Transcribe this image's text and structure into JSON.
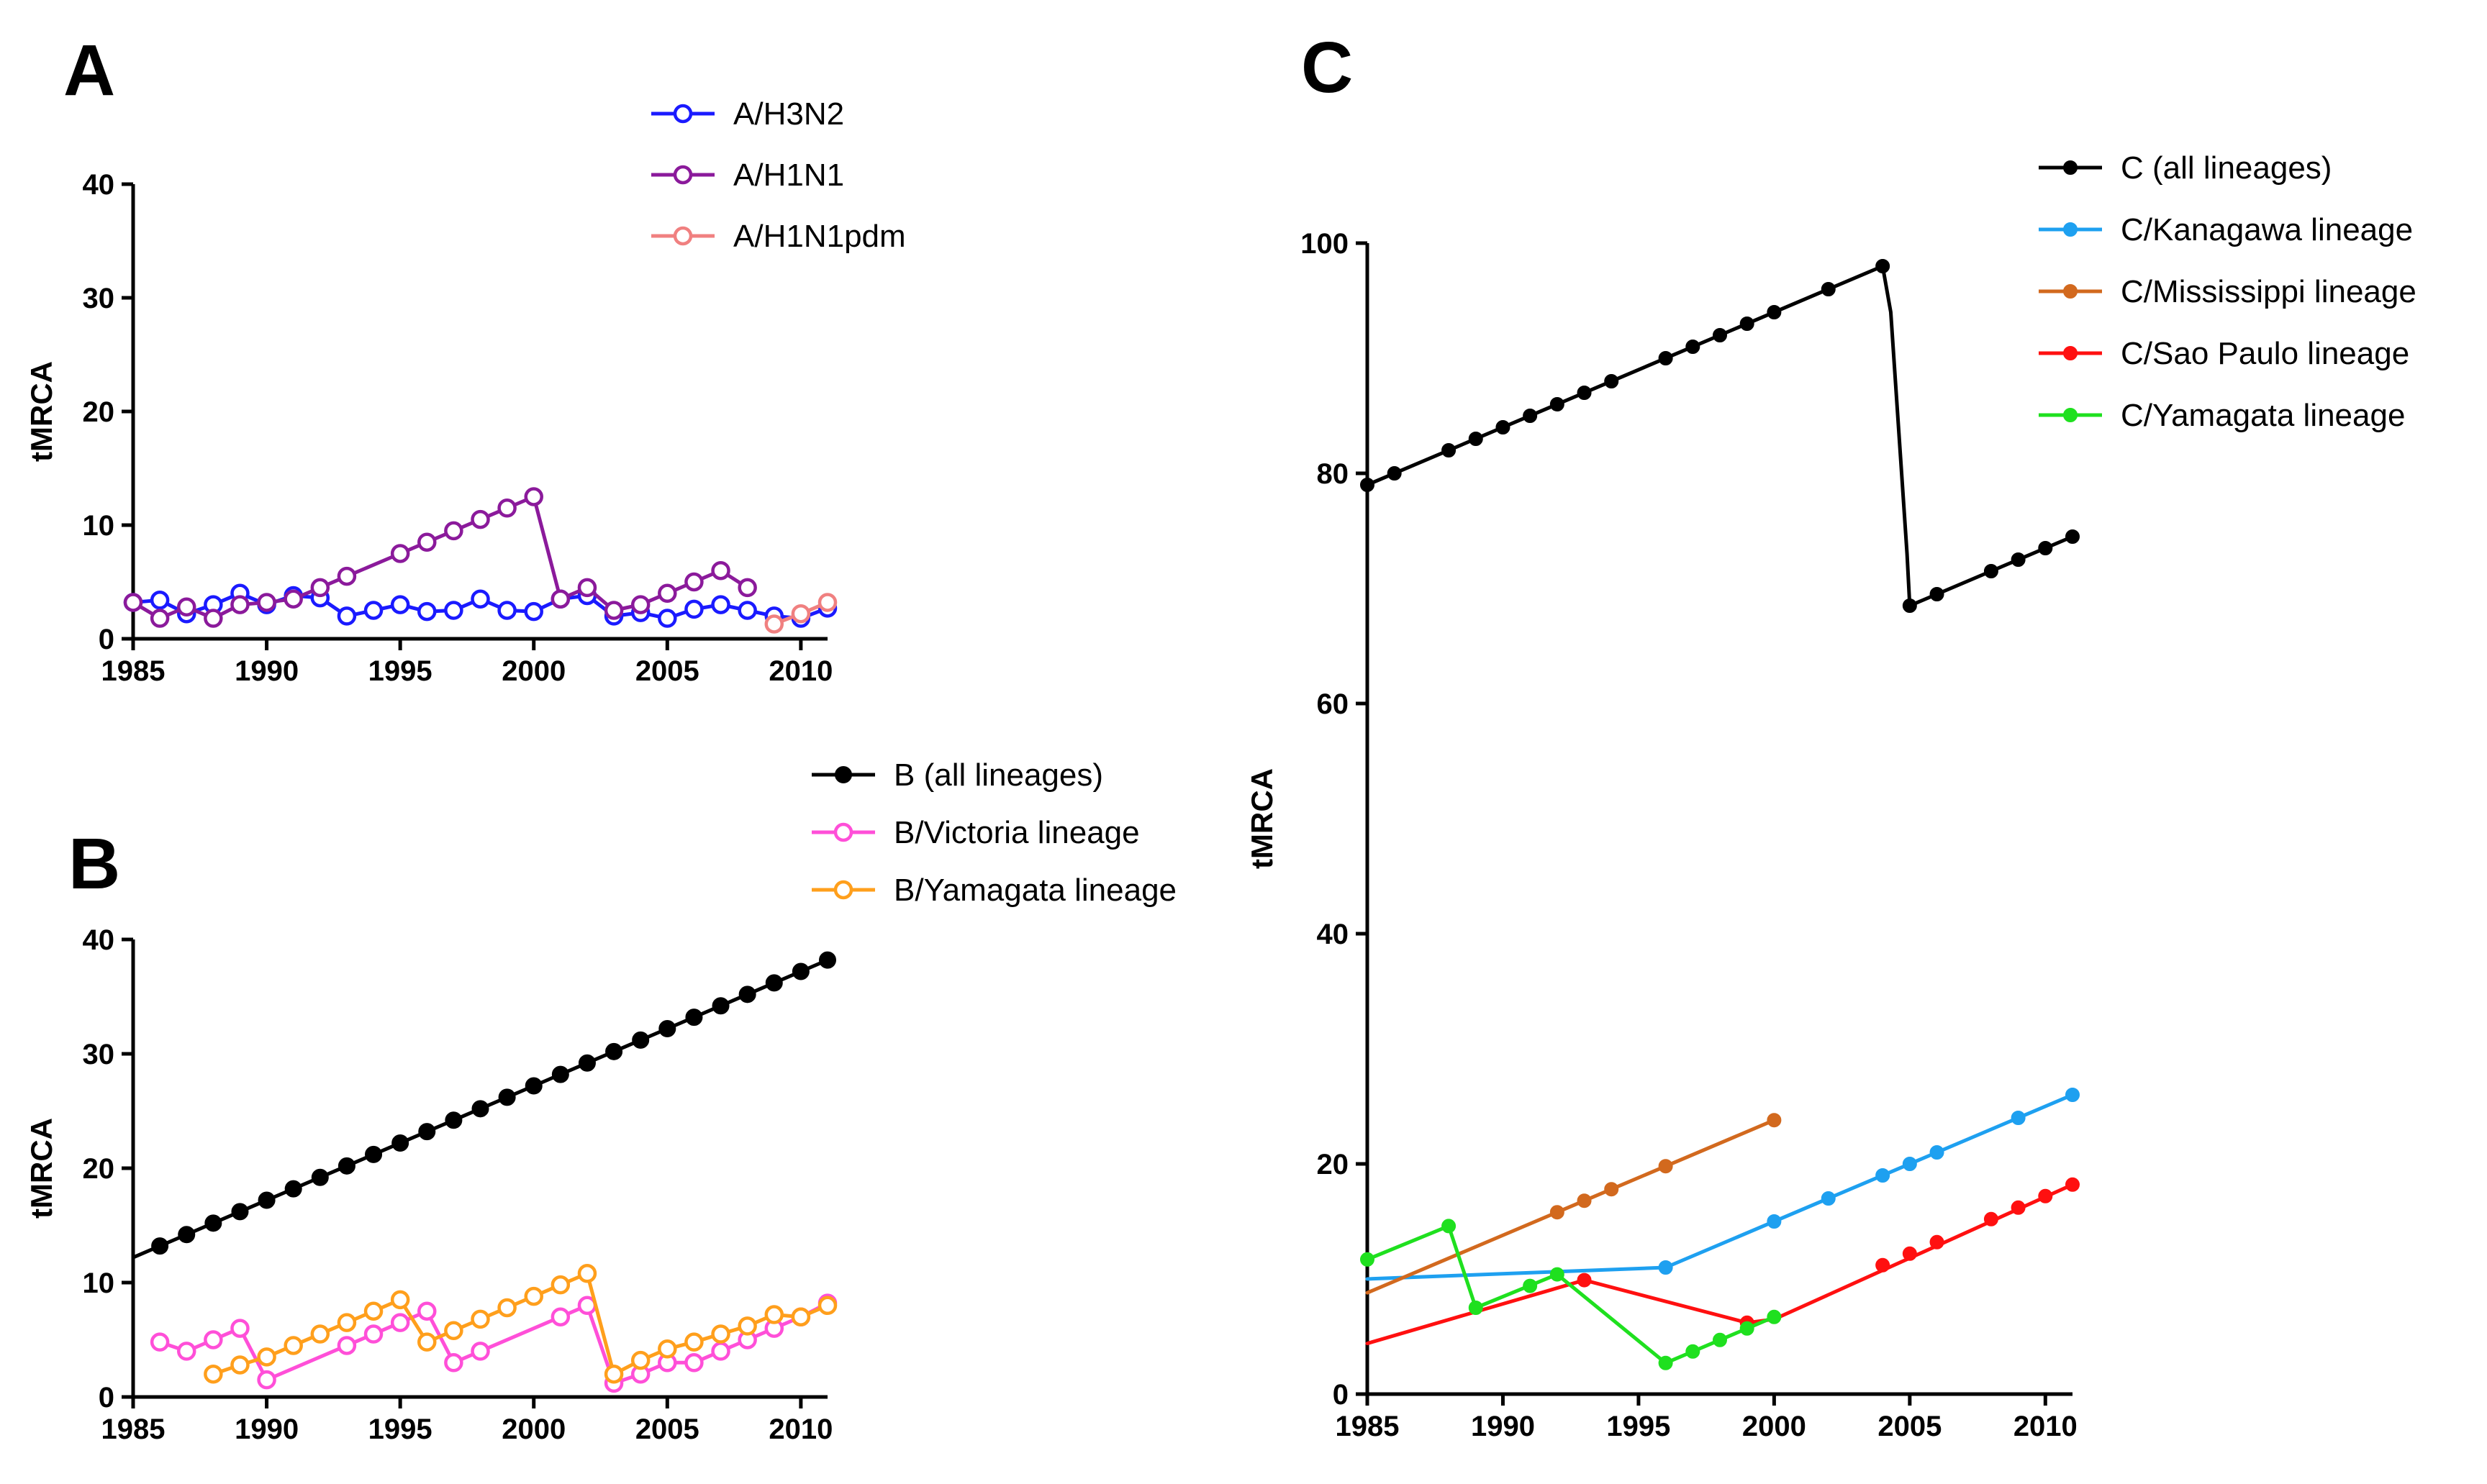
{
  "chart_data": [
    {
      "id": "A",
      "type": "line",
      "panel_label": "A",
      "xlabel": "",
      "ylabel": "tMRCA",
      "xlim": [
        1985,
        2011
      ],
      "ylim": [
        0,
        40
      ],
      "xticks": [
        1985,
        1990,
        1995,
        2000,
        2005,
        2010
      ],
      "yticks": [
        0,
        10,
        20,
        30,
        40
      ],
      "legend_position": "top-right",
      "series": [
        {
          "name": "A/H3N2",
          "color": "#1a1aff",
          "marker": "open",
          "x": [
            1985,
            1986,
            1987,
            1988,
            1989,
            1990,
            1991,
            1992,
            1993,
            1994,
            1995,
            1996,
            1997,
            1998,
            1999,
            2000,
            2001,
            2002,
            2003,
            2004,
            2005,
            2006,
            2007,
            2008,
            2009,
            2010,
            2011
          ],
          "y": [
            3.2,
            3.4,
            2.2,
            3.0,
            4.0,
            3.0,
            3.8,
            3.6,
            2.0,
            2.5,
            3.0,
            2.4,
            2.5,
            3.5,
            2.5,
            2.4,
            3.5,
            3.8,
            2.0,
            2.3,
            1.8,
            2.6,
            3.0,
            2.5,
            2.0,
            1.8,
            2.7
          ]
        },
        {
          "name": "A/H1N1",
          "color": "#8b1a9b",
          "marker": "open",
          "x": [
            1985,
            1986,
            1987,
            1988,
            1989,
            1990,
            1991,
            1992,
            1993,
            1995,
            1996,
            1997,
            1998,
            1999,
            2000,
            2001,
            2002,
            2003,
            2004,
            2005,
            2006,
            2007,
            2008
          ],
          "y": [
            3.2,
            1.8,
            2.8,
            1.8,
            3.0,
            3.2,
            3.5,
            4.5,
            5.5,
            7.5,
            8.5,
            9.5,
            10.5,
            11.5,
            12.5,
            3.5,
            4.5,
            2.5,
            3.0,
            4.0,
            5.0,
            6.0,
            4.5
          ]
        },
        {
          "name": "A/H1N1pdm",
          "color": "#f08080",
          "marker": "open",
          "x": [
            2009,
            2010,
            2011
          ],
          "y": [
            1.3,
            2.2,
            3.2
          ]
        }
      ]
    },
    {
      "id": "B",
      "type": "line",
      "panel_label": "B",
      "xlabel": "",
      "ylabel": "tMRCA",
      "xlim": [
        1985,
        2011
      ],
      "ylim": [
        0,
        40
      ],
      "xticks": [
        1985,
        1990,
        1995,
        2000,
        2005,
        2010
      ],
      "yticks": [
        0,
        10,
        20,
        30,
        40
      ],
      "legend_position": "top-right",
      "series": [
        {
          "name": "B (all lineages)",
          "color": "#000000",
          "marker": "filled",
          "line_x": [
            1985,
            2011
          ],
          "line_y": [
            12.2,
            38.2
          ],
          "x": [
            1986,
            1987,
            1988,
            1989,
            1990,
            1991,
            1992,
            1993,
            1994,
            1995,
            1996,
            1997,
            1998,
            1999,
            2000,
            2001,
            2002,
            2003,
            2004,
            2005,
            2006,
            2007,
            2008,
            2009,
            2010,
            2011
          ],
          "y": [
            13.2,
            14.2,
            15.2,
            16.2,
            17.2,
            18.2,
            19.2,
            20.2,
            21.2,
            22.2,
            23.2,
            24.2,
            25.2,
            26.2,
            27.2,
            28.2,
            29.2,
            30.2,
            31.2,
            32.2,
            33.2,
            34.2,
            35.2,
            36.2,
            37.2,
            38.2
          ]
        },
        {
          "name": "B/Victoria lineage",
          "color": "#ff4fd8",
          "marker": "open",
          "x": [
            1986,
            1987,
            1988,
            1989,
            1990,
            1993,
            1994,
            1995,
            1996,
            1997,
            1998,
            2001,
            2002,
            2003,
            2004,
            2005,
            2006,
            2007,
            2008,
            2009,
            2010,
            2011
          ],
          "y": [
            4.8,
            4.0,
            5.0,
            6.0,
            1.5,
            4.5,
            5.5,
            6.5,
            7.5,
            3.0,
            4.0,
            7.0,
            8.0,
            1.2,
            2.0,
            3.0,
            3.0,
            4.0,
            5.0,
            6.0,
            7.0,
            8.2
          ]
        },
        {
          "name": "B/Yamagata lineage",
          "color": "#ff9f1c",
          "marker": "open",
          "x": [
            1988,
            1989,
            1990,
            1991,
            1992,
            1993,
            1994,
            1995,
            1996,
            1997,
            1998,
            1999,
            2000,
            2001,
            2002,
            2003,
            2004,
            2005,
            2006,
            2007,
            2008,
            2009,
            2010,
            2011
          ],
          "y": [
            2.0,
            2.8,
            3.5,
            4.5,
            5.5,
            6.5,
            7.5,
            8.5,
            4.8,
            5.8,
            6.8,
            7.8,
            8.8,
            9.8,
            10.8,
            2.0,
            3.2,
            4.2,
            4.8,
            5.5,
            6.2,
            7.2,
            7.0,
            8.0
          ]
        }
      ]
    },
    {
      "id": "C",
      "type": "line",
      "panel_label": "C",
      "xlabel": "",
      "ylabel": "tMRCA",
      "xlim": [
        1985,
        2011
      ],
      "ylim": [
        0,
        100
      ],
      "xticks": [
        1985,
        1990,
        1995,
        2000,
        2005,
        2010
      ],
      "yticks": [
        0,
        20,
        40,
        60,
        80,
        100
      ],
      "legend_position": "top-right",
      "series": [
        {
          "name": "C (all lineages)",
          "color": "#000000",
          "marker": "filled",
          "line_x": [
            1985,
            2004,
            2004.3,
            2004.9,
            2005,
            2011
          ],
          "line_y": [
            79,
            98,
            94,
            73,
            68.5,
            74.5
          ],
          "x": [
            1985,
            1986,
            1988,
            1989,
            1990,
            1991,
            1992,
            1993,
            1994,
            1996,
            1997,
            1998,
            1999,
            2000,
            2002,
            2004,
            2005,
            2006,
            2008,
            2009,
            2010,
            2011
          ],
          "y": [
            79,
            80,
            82,
            83,
            84,
            85,
            86,
            87,
            88,
            90,
            91,
            92,
            93,
            94,
            96,
            98,
            68.5,
            69.5,
            71.5,
            72.5,
            73.5,
            74.5
          ]
        },
        {
          "name": "C/Kanagawa lineage",
          "color": "#1ea0f0",
          "marker": "filled",
          "line_x": [
            1985,
            1996,
            2011
          ],
          "line_y": [
            10,
            11,
            26
          ],
          "x": [
            1996,
            2000,
            2002,
            2004,
            2005,
            2006,
            2009,
            2011
          ],
          "y": [
            11,
            15,
            17,
            19,
            20,
            21,
            24,
            26
          ]
        },
        {
          "name": "C/Mississippi lineage",
          "color": "#d2691e",
          "marker": "filled",
          "line_x": [
            1985,
            2000
          ],
          "line_y": [
            8.8,
            23.8
          ],
          "x": [
            1992,
            1993,
            1994,
            1996,
            2000
          ],
          "y": [
            15.8,
            16.8,
            17.8,
            19.8,
            23.8
          ]
        },
        {
          "name": "C/Sao Paulo lineage",
          "color": "#ff1010",
          "marker": "filled",
          "line_x": [
            1985,
            1993,
            1999,
            2000,
            2011
          ],
          "line_y": [
            4.4,
            9.9,
            6.2,
            6.5,
            18.2
          ],
          "x": [
            1993,
            1999,
            2004,
            2005,
            2006,
            2008,
            2009,
            2010,
            2011
          ],
          "y": [
            9.9,
            6.2,
            11.2,
            12.2,
            13.2,
            15.2,
            16.2,
            17.2,
            18.2
          ]
        },
        {
          "name": "C/Yamagata lineage",
          "color": "#1fe01f",
          "marker": "filled",
          "line_x": [
            1985,
            1988,
            1989,
            1992,
            1996,
            2000
          ],
          "line_y": [
            11.7,
            14.6,
            7.5,
            10.4,
            2.7,
            6.7
          ],
          "x": [
            1985,
            1988,
            1989,
            1991,
            1992,
            1996,
            1997,
            1998,
            1999,
            2000
          ],
          "y": [
            11.7,
            14.6,
            7.5,
            9.4,
            10.4,
            2.7,
            3.7,
            4.7,
            5.7,
            6.7
          ]
        }
      ]
    }
  ]
}
